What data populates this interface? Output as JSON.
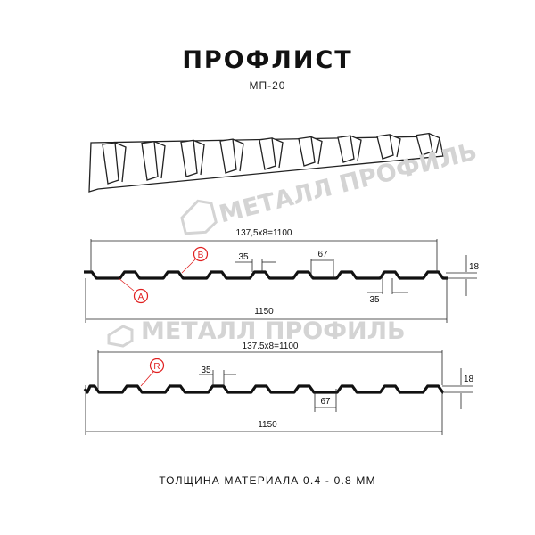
{
  "header": {
    "title": "ПРОФЛИСТ",
    "model": "МП-20"
  },
  "watermark": {
    "text": "МЕТАЛЛ ПРОФИЛЬ"
  },
  "profile_1": {
    "pitch_dimension": "137,5x8=1100",
    "total_width": "1150",
    "rib_top": "35",
    "rib_bottom": "35",
    "rib_spacing": "67",
    "height": "18",
    "callout_a": "A",
    "callout_b": "B"
  },
  "profile_2": {
    "pitch_dimension": "137.5x8=1100",
    "total_width": "1150",
    "rib_top": "35",
    "rib_spacing": "67",
    "height": "18",
    "callout_r": "R"
  },
  "footer": {
    "thickness": "ТОЛЩИНА МАТЕРИАЛА 0.4 - 0.8 ММ"
  },
  "colors": {
    "profile": "#111111",
    "callout": "#e02020",
    "watermark": "#d4d4d4"
  }
}
